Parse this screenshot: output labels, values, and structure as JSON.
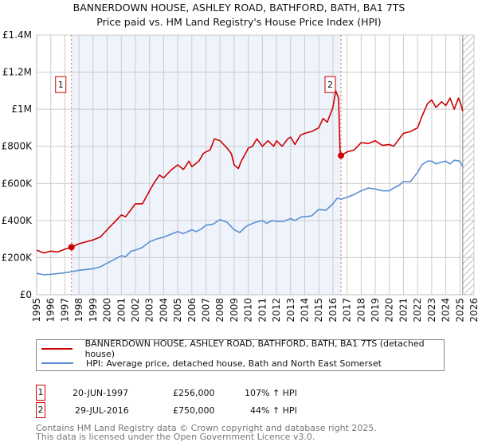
{
  "chart_data": {
    "type": "line",
    "title": "BANNERDOWN HOUSE, ASHLEY ROAD, BATHFORD, BATH, BA1 7TS",
    "subtitle": "Price paid vs. HM Land Registry's House Price Index (HPI)",
    "xlim": [
      1995,
      2026
    ],
    "ylim": [
      0,
      1400000
    ],
    "x_ticks": [
      "1995",
      "1996",
      "1997",
      "1998",
      "1999",
      "2000",
      "2001",
      "2002",
      "2003",
      "2004",
      "2005",
      "2006",
      "2007",
      "2008",
      "2009",
      "2010",
      "2011",
      "2012",
      "2013",
      "2014",
      "2015",
      "2016",
      "2017",
      "2018",
      "2019",
      "2020",
      "2021",
      "2022",
      "2023",
      "2024",
      "2025",
      "2026"
    ],
    "y_ticks": [
      {
        "value": 0,
        "label": "£0"
      },
      {
        "value": 200000,
        "label": "£200K"
      },
      {
        "value": 400000,
        "label": "£400K"
      },
      {
        "value": 600000,
        "label": "£600K"
      },
      {
        "value": 800000,
        "label": "£800K"
      },
      {
        "value": 1000000,
        "label": "£1M"
      },
      {
        "value": 1200000,
        "label": "£1.2M"
      },
      {
        "value": 1400000,
        "label": "£1.4M"
      }
    ],
    "grid": true,
    "shaded_region": [
      1997.47,
      2016.57
    ],
    "hatched_after": 2025.2,
    "series": [
      {
        "name": "BANNERDOWN HOUSE, ASHLEY ROAD, BATHFORD, BATH, BA1 7TS (detached house)",
        "color": "#cc0000",
        "x": [
          1995,
          1995.5,
          1996,
          1996.5,
          1997,
          1997.47,
          1998,
          1998.5,
          1999,
          1999.5,
          2000,
          2000.5,
          2001,
          2001.3,
          2001.7,
          2002,
          2002.5,
          2003,
          2003.3,
          2003.7,
          2004,
          2004.5,
          2005,
          2005.4,
          2005.8,
          2006,
          2006.5,
          2006.8,
          2007,
          2007.3,
          2007.6,
          2008,
          2008.5,
          2008.8,
          2009,
          2009.3,
          2009.5,
          2009.8,
          2010,
          2010.3,
          2010.6,
          2011,
          2011.4,
          2011.8,
          2012,
          2012.4,
          2012.8,
          2013,
          2013.3,
          2013.7,
          2014,
          2014.5,
          2015,
          2015.3,
          2015.6,
          2016,
          2016.2,
          2016.4,
          2016.5,
          2016.57,
          2017,
          2017.5,
          2018,
          2018.5,
          2019,
          2019.5,
          2020,
          2020.3,
          2020.7,
          2021,
          2021.5,
          2022,
          2022.3,
          2022.7,
          2023,
          2023.3,
          2023.7,
          2024,
          2024.3,
          2024.6,
          2024.9,
          2025.1,
          2025.2
        ],
        "y": [
          240000,
          225000,
          235000,
          230000,
          245000,
          256000,
          275000,
          285000,
          295000,
          310000,
          350000,
          390000,
          430000,
          420000,
          460000,
          490000,
          490000,
          560000,
          600000,
          645000,
          630000,
          670000,
          700000,
          675000,
          720000,
          690000,
          720000,
          760000,
          770000,
          780000,
          840000,
          830000,
          790000,
          760000,
          700000,
          680000,
          720000,
          760000,
          790000,
          800000,
          840000,
          800000,
          830000,
          800000,
          830000,
          800000,
          840000,
          850000,
          810000,
          860000,
          870000,
          880000,
          900000,
          950000,
          930000,
          1010000,
          1100000,
          1060000,
          780000,
          750000,
          770000,
          780000,
          820000,
          815000,
          830000,
          805000,
          810000,
          800000,
          840000,
          870000,
          880000,
          900000,
          960000,
          1030000,
          1050000,
          1010000,
          1040000,
          1020000,
          1060000,
          1000000,
          1060000,
          1020000,
          990000
        ]
      },
      {
        "name": "HPI: Average price, detached house, Bath and North East Somerset",
        "color": "#5b8fd4",
        "x": [
          1995,
          1995.5,
          1996,
          1997,
          1997.5,
          1998,
          1999,
          1999.5,
          2000,
          2000.5,
          2001,
          2001.3,
          2001.7,
          2002,
          2002.5,
          2003,
          2003.5,
          2004,
          2004.5,
          2005,
          2005.4,
          2006,
          2006.3,
          2006.7,
          2007,
          2007.5,
          2008,
          2008.5,
          2009,
          2009.4,
          2009.8,
          2010,
          2010.5,
          2011,
          2011.3,
          2011.7,
          2012,
          2012.5,
          2013,
          2013.3,
          2013.8,
          2014,
          2014.5,
          2015,
          2015.5,
          2016,
          2016.3,
          2016.6,
          2017,
          2017.5,
          2018,
          2018.5,
          2019,
          2019.5,
          2020,
          2020.3,
          2020.7,
          2021,
          2021.5,
          2022,
          2022.3,
          2022.7,
          2023,
          2023.3,
          2023.7,
          2024,
          2024.3,
          2024.6,
          2025,
          2025.2
        ],
        "y": [
          115000,
          108000,
          110000,
          118000,
          124000,
          132000,
          140000,
          150000,
          170000,
          190000,
          210000,
          205000,
          235000,
          240000,
          255000,
          285000,
          300000,
          310000,
          325000,
          340000,
          330000,
          350000,
          340000,
          355000,
          375000,
          380000,
          405000,
          390000,
          350000,
          335000,
          365000,
          375000,
          390000,
          400000,
          385000,
          400000,
          395000,
          395000,
          410000,
          400000,
          420000,
          420000,
          425000,
          460000,
          455000,
          490000,
          520000,
          515000,
          525000,
          540000,
          560000,
          575000,
          570000,
          560000,
          560000,
          575000,
          590000,
          610000,
          610000,
          660000,
          700000,
          720000,
          720000,
          705000,
          715000,
          720000,
          705000,
          725000,
          720000,
          690000
        ]
      }
    ],
    "markers": [
      {
        "label": "1",
        "x": 1997.47,
        "y": 256000
      },
      {
        "label": "2",
        "x": 2016.57,
        "y": 750000
      }
    ],
    "legend_placement": "bottom"
  },
  "title_line1": "BANNERDOWN HOUSE, ASHLEY ROAD, BATHFORD, BATH, BA1 7TS",
  "title_line2": "Price paid vs. HM Land Registry's House Price Index (HPI)",
  "legend": {
    "property": "BANNERDOWN HOUSE, ASHLEY ROAD, BATHFORD, BATH, BA1 7TS (detached house)",
    "hpi": "HPI: Average price, detached house, Bath and North East Somerset"
  },
  "sales": [
    {
      "num": "1",
      "date": "20-JUN-1997",
      "price": "£256,000",
      "hpi": "107% ↑ HPI"
    },
    {
      "num": "2",
      "date": "29-JUL-2016",
      "price": "£750,000",
      "hpi": "44% ↑ HPI"
    }
  ],
  "footer": {
    "line1": "Contains HM Land Registry data © Crown copyright and database right 2025.",
    "line2": "This data is licensed under the Open Government Licence v3.0."
  },
  "colors": {
    "property": "#cc0000",
    "hpi": "#5b8fd4",
    "shade": "#eef3fc",
    "grid": "#cccccc"
  }
}
